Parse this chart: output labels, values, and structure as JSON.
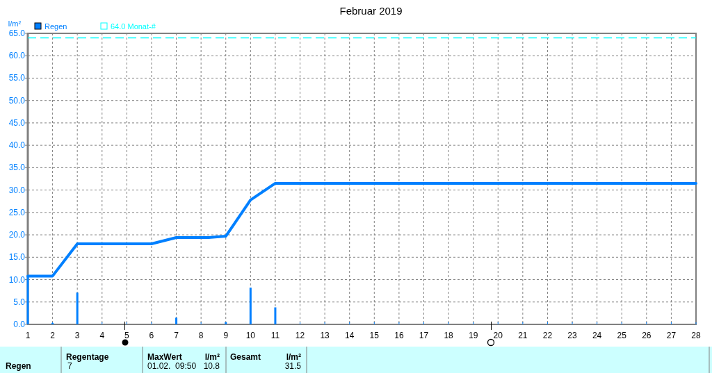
{
  "chart_data": [
    {
      "type": "bar",
      "title": "Februar 2019",
      "ylabel": "l/m²",
      "legend": "top left",
      "grid": true,
      "xlim": [
        1,
        28
      ],
      "xticks": [
        1,
        2,
        3,
        4,
        5,
        6,
        7,
        8,
        9,
        10,
        11,
        12,
        13,
        14,
        15,
        16,
        17,
        18,
        19,
        20,
        21,
        22,
        23,
        24,
        25,
        26,
        27,
        28
      ],
      "ylim": [
        0,
        65
      ],
      "yticks": [
        {
          "value": 0,
          "label": "0.0"
        },
        {
          "value": 5,
          "label": "5.0"
        },
        {
          "value": 10,
          "label": "10.0"
        },
        {
          "value": 15,
          "label": "15.0"
        },
        {
          "value": 20,
          "label": "20.0"
        },
        {
          "value": 25,
          "label": "25.0"
        },
        {
          "value": 30,
          "label": "30.0"
        },
        {
          "value": 35,
          "label": "35.0"
        },
        {
          "value": 40,
          "label": "40.0"
        },
        {
          "value": 45,
          "label": "45.0"
        },
        {
          "value": 50,
          "label": "50.0"
        },
        {
          "value": 55,
          "label": "55.0"
        },
        {
          "value": 60,
          "label": "60.0"
        },
        {
          "value": 65,
          "label": "65.0"
        }
      ],
      "series": [
        {
          "name": "Regen",
          "type": "bar",
          "color": "#0080ff",
          "x": [
            1,
            2,
            3,
            7,
            9,
            10,
            11
          ],
          "values": [
            10.8,
            0.3,
            7.1,
            1.5,
            0.5,
            8.2,
            3.8
          ]
        },
        {
          "type": "line",
          "color": "#0080ff",
          "x": [
            1,
            2,
            3,
            6,
            7,
            8.3,
            9,
            10,
            11,
            28
          ],
          "values": [
            10.8,
            10.8,
            18.0,
            18.0,
            19.4,
            19.4,
            19.7,
            27.8,
            31.5,
            31.5
          ]
        }
      ],
      "ref_lines": [
        {
          "axis": "y",
          "value": 64,
          "label": "64.0 Monat-#",
          "color": "#00ffff",
          "line_style": "dashed"
        }
      ]
    },
    {
      "type": "other",
      "annotations": [
        "Regen",
        "Regentage",
        "7",
        "MaxWert",
        "l/m²",
        "01.02.  09:50",
        "10.8",
        "Gesamt",
        "l/m²",
        "31.5"
      ]
    }
  ]
}
